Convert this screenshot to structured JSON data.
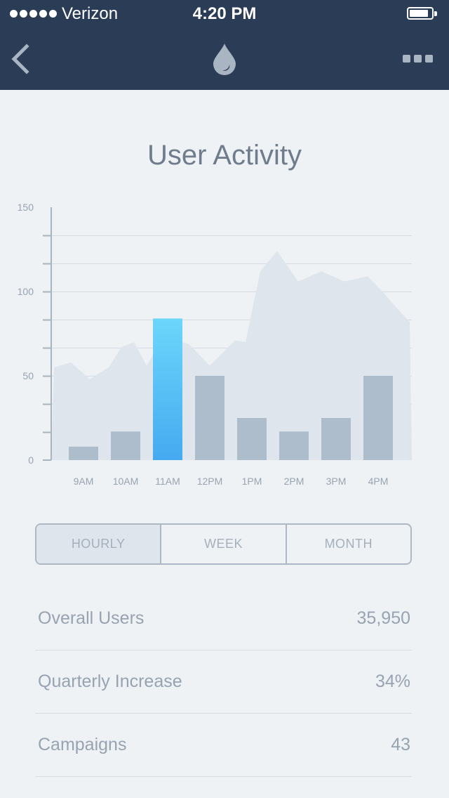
{
  "status_bar": {
    "carrier": "Verizon",
    "time": "4:20 PM",
    "signal_bars": 5,
    "battery_level": 0.85
  },
  "nav": {
    "back_icon": "chevron-left-icon",
    "logo_icon": "water-drop-icon",
    "more_icon": "more-dots-icon"
  },
  "page_title": "User Activity",
  "chart_data": {
    "type": "bar",
    "categories": [
      "9AM",
      "10AM",
      "11AM",
      "12PM",
      "1PM",
      "2PM",
      "3PM",
      "4PM"
    ],
    "values": [
      8,
      17,
      84,
      50,
      25,
      17,
      25,
      50
    ],
    "highlighted_index": 2,
    "ylim": [
      0,
      150
    ],
    "y_ticks": [
      0,
      50,
      100,
      150
    ],
    "y_minor_step": 16.67,
    "background_area": {
      "x_index": [
        -0.7,
        -0.3,
        0.15,
        0.6,
        0.9,
        1.2,
        1.5,
        1.9,
        2.5,
        3.0,
        3.6,
        3.85,
        4.2,
        4.6,
        5.1,
        5.65,
        6.2,
        6.75,
        7.1,
        7.45,
        7.75
      ],
      "values": [
        55,
        58,
        48,
        55,
        67,
        70,
        56,
        73,
        69,
        56,
        71,
        70,
        112,
        124,
        106,
        112,
        106,
        109,
        100,
        90,
        82
      ]
    },
    "colors": {
      "bar": "#aebdcb",
      "bar_highlight_top": "#6cd6fb",
      "bar_highlight_bottom": "#45aaf0",
      "area": "#dfe5ec",
      "grid": "#d6dce3",
      "axis": "#a9b4c1",
      "label": "#98a3b1"
    }
  },
  "range_tabs": [
    {
      "label": "HOURLY",
      "active": true
    },
    {
      "label": "WEEK",
      "active": false
    },
    {
      "label": "MONTH",
      "active": false
    }
  ],
  "stats": [
    {
      "label": "Overall Users",
      "value": "35,950"
    },
    {
      "label": "Quarterly Increase",
      "value": "34%"
    },
    {
      "label": "Campaigns",
      "value": "43"
    }
  ]
}
